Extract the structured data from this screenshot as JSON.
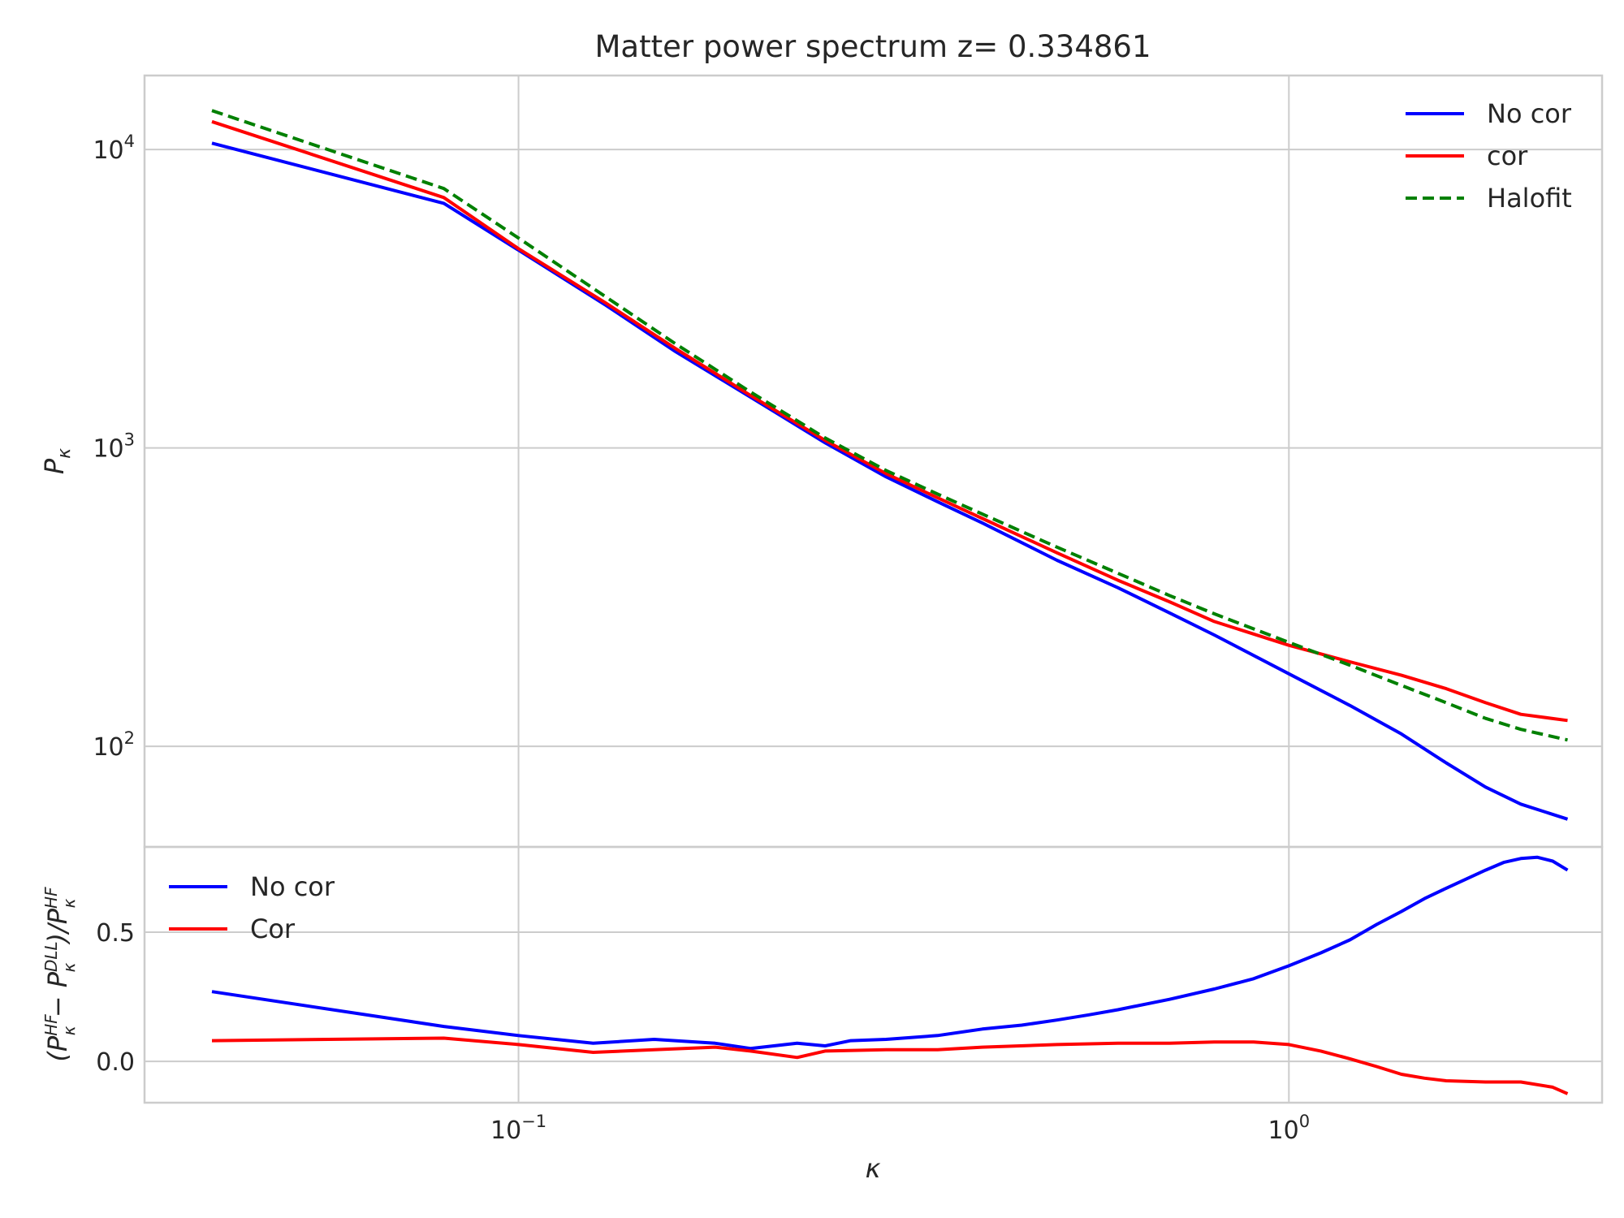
{
  "title": "Matter power spectrum z= 0.334861",
  "colors": {
    "no_cor": "#0000ff",
    "cor": "#ff0000",
    "halofit": "#008000"
  },
  "chart_data": [
    {
      "type": "line",
      "panel": "top",
      "title": "Matter power spectrum z= 0.334861",
      "xlabel": "κ",
      "ylabel": "P_κ",
      "xscale": "log",
      "yscale": "log",
      "xlim": [
        0.0327,
        2.55
      ],
      "ylim": [
        46,
        17700
      ],
      "grid": true,
      "legend_position": "top-right",
      "x_ticks": [
        {
          "value": 0.1,
          "base": "10",
          "exp": "−1"
        },
        {
          "value": 1.0,
          "base": "10",
          "exp": "0"
        }
      ],
      "y_ticks": [
        {
          "value": 100,
          "base": "10",
          "exp": "2"
        },
        {
          "value": 1000,
          "base": "10",
          "exp": "3"
        },
        {
          "value": 10000,
          "base": "10",
          "exp": "4"
        }
      ],
      "series": [
        {
          "name": "No cor",
          "style": "solid",
          "x": [
            0.04,
            0.08,
            0.1,
            0.13,
            0.16,
            0.2,
            0.25,
            0.3,
            0.35,
            0.4,
            0.5,
            0.6,
            0.7,
            0.8,
            1.0,
            1.2,
            1.4,
            1.6,
            1.8,
            2.0,
            2.3
          ],
          "y": [
            10500,
            6600,
            4600,
            3000,
            2100,
            1480,
            1040,
            800,
            660,
            560,
            420,
            340,
            280,
            236,
            175,
            137,
            110,
            88,
            73,
            64,
            57
          ]
        },
        {
          "name": "cor",
          "style": "solid",
          "x": [
            0.04,
            0.08,
            0.1,
            0.13,
            0.16,
            0.2,
            0.25,
            0.3,
            0.35,
            0.4,
            0.5,
            0.6,
            0.7,
            0.8,
            1.0,
            1.2,
            1.4,
            1.6,
            1.8,
            2.0,
            2.3
          ],
          "y": [
            12400,
            6900,
            4650,
            3050,
            2150,
            1500,
            1060,
            820,
            680,
            580,
            445,
            360,
            305,
            262,
            218,
            192,
            173,
            156,
            140,
            128,
            122
          ]
        },
        {
          "name": "Halofit",
          "style": "dashed",
          "x": [
            0.04,
            0.08,
            0.1,
            0.13,
            0.16,
            0.2,
            0.25,
            0.3,
            0.35,
            0.4,
            0.5,
            0.6,
            0.7,
            0.8,
            1.0,
            1.2,
            1.4,
            1.6,
            1.8,
            2.0,
            2.3
          ],
          "y": [
            13500,
            7400,
            5050,
            3200,
            2230,
            1540,
            1080,
            840,
            700,
            600,
            465,
            380,
            320,
            278,
            223,
            187,
            160,
            140,
            124,
            114,
            105
          ]
        }
      ]
    },
    {
      "type": "line",
      "panel": "bottom",
      "xlabel": "κ",
      "ylabel": "(P_κ^HF − P_κ^DLL)/P_κ^HF",
      "xscale": "log",
      "yscale": "linear",
      "xlim": [
        0.0327,
        2.55
      ],
      "ylim": [
        -0.16,
        0.83
      ],
      "grid": true,
      "legend_position": "top-left",
      "x_ticks": [
        {
          "value": 0.1,
          "base": "10",
          "exp": "−1"
        },
        {
          "value": 1.0,
          "base": "10",
          "exp": "0"
        }
      ],
      "y_ticks": [
        {
          "value": 0.0,
          "label": "0.0"
        },
        {
          "value": 0.5,
          "label": "0.5"
        }
      ],
      "series": [
        {
          "name": "No cor",
          "style": "solid",
          "x": [
            0.04,
            0.08,
            0.1,
            0.125,
            0.15,
            0.18,
            0.2,
            0.23,
            0.25,
            0.27,
            0.3,
            0.35,
            0.4,
            0.45,
            0.5,
            0.55,
            0.6,
            0.7,
            0.8,
            0.9,
            1.0,
            1.1,
            1.2,
            1.3,
            1.4,
            1.5,
            1.6,
            1.8,
            1.9,
            2.0,
            2.1,
            2.2,
            2.3
          ],
          "y": [
            0.27,
            0.135,
            0.1,
            0.07,
            0.085,
            0.07,
            0.05,
            0.07,
            0.06,
            0.08,
            0.085,
            0.1,
            0.125,
            0.14,
            0.16,
            0.18,
            0.2,
            0.24,
            0.28,
            0.32,
            0.37,
            0.42,
            0.47,
            0.53,
            0.58,
            0.63,
            0.67,
            0.74,
            0.77,
            0.785,
            0.79,
            0.775,
            0.74
          ]
        },
        {
          "name": "Cor",
          "style": "solid",
          "x": [
            0.04,
            0.08,
            0.1,
            0.125,
            0.15,
            0.18,
            0.2,
            0.23,
            0.25,
            0.3,
            0.35,
            0.4,
            0.5,
            0.6,
            0.7,
            0.8,
            0.9,
            1.0,
            1.1,
            1.2,
            1.3,
            1.4,
            1.5,
            1.6,
            1.8,
            2.0,
            2.2,
            2.3
          ],
          "y": [
            0.08,
            0.09,
            0.065,
            0.035,
            0.045,
            0.055,
            0.04,
            0.015,
            0.04,
            0.045,
            0.045,
            0.055,
            0.065,
            0.07,
            0.07,
            0.075,
            0.075,
            0.065,
            0.04,
            0.01,
            -0.02,
            -0.05,
            -0.065,
            -0.075,
            -0.08,
            -0.08,
            -0.1,
            -0.125
          ]
        }
      ]
    }
  ]
}
